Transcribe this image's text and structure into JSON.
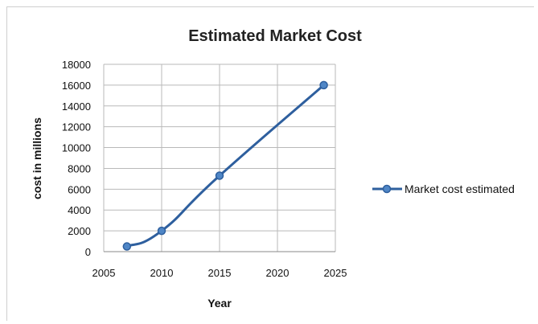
{
  "chart_data": {
    "type": "line",
    "title": "Estimated Market Cost",
    "xlabel": "Year",
    "ylabel": "cost in millions",
    "xlim": [
      2005,
      2025
    ],
    "ylim": [
      0,
      18000
    ],
    "x_ticks": [
      "2005",
      "2010",
      "2015",
      "2020",
      "2025"
    ],
    "y_ticks": [
      "0",
      "2000",
      "4000",
      "6000",
      "8000",
      "10000",
      "12000",
      "14000",
      "16000",
      "18000"
    ],
    "grid": true,
    "legend_position": "right",
    "series": [
      {
        "name": "Market cost estimated",
        "color": "#2e5f9e",
        "marker_color": "#4f86c6",
        "smooth": true,
        "x": [
          2007,
          2010,
          2015,
          2024
        ],
        "y": [
          500,
          2000,
          7300,
          16000
        ]
      }
    ]
  }
}
